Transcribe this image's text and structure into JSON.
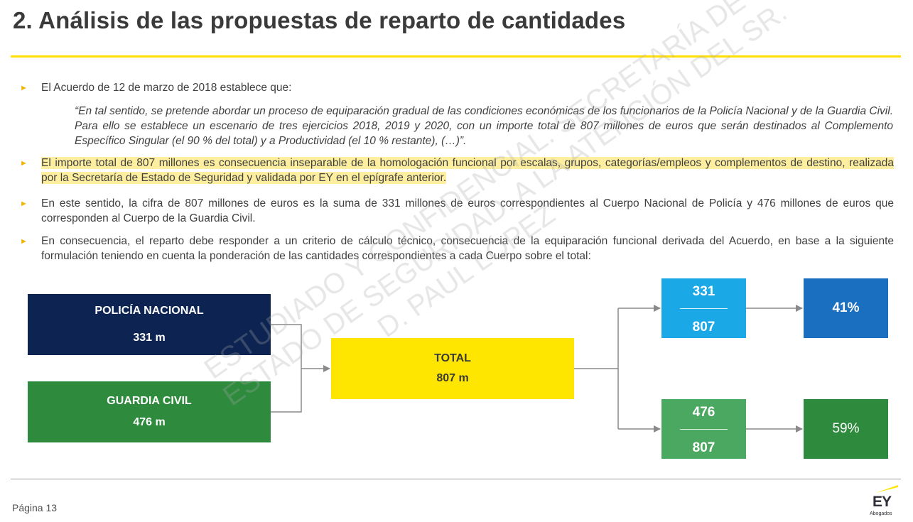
{
  "title": "2. Análisis de las propuestas de reparto de cantidades",
  "bullet_icon": "triangle-right-icon",
  "paragraphs": {
    "p1": "El Acuerdo de 12 de marzo de 2018 establece que:",
    "quote": "“En tal sentido, se pretende abordar un proceso de equiparación gradual de las condiciones económicas de los funcionarios de la Policía Nacional y de la Guardia Civil. Para ello se establece un escenario de tres ejercicios 2018, 2019 y 2020, con un importe total de 807 millones de euros que serán destinados al Complemento Específico Singular (el 90 % del total) y a Productividad (el 10 % restante), (…)”.",
    "p2": "El importe total de 807 millones es consecuencia inseparable de la homologación funcional por escalas, grupos, categorías/empleos y complementos de destino, realizada por la Secretaría de Estado de Seguridad y validada por EY en el epígrafe anterior.",
    "p3": "En este sentido, la cifra de 807 millones de euros es la suma de 331 millones de euros correspondientes al Cuerpo Nacional de Policía y 476 millones de euros que corresponden al Cuerpo de la Guardia Civil.",
    "p4": "En consecuencia, el reparto debe responder a un criterio de cálculo técnico, consecuencia de la equiparación funcional derivada del Acuerdo, en base a la siguiente formulación teniendo en cuenta la ponderación de las cantidades correspondientes a cada Cuerpo sobre el total:"
  },
  "diagram": {
    "policia": {
      "label": "POLICÍA NACIONAL",
      "value": "331 m"
    },
    "guardia": {
      "label": "GUARDIA CIVIL",
      "value": "476 m"
    },
    "total": {
      "label": "TOTAL",
      "value": "807 m"
    },
    "frac_policia": {
      "numerator": "331",
      "denominator": "807"
    },
    "frac_guardia": {
      "numerator": "476",
      "denominator": "807"
    },
    "pct_policia": "41%",
    "pct_guardia": "59%"
  },
  "watermark": {
    "line1": "ESTUDIADO Y CONFIDENCIAL. SECRETARÍA DE",
    "line2": "ESTADO DE SEGURIDAD. A LA ATENCIÓN DEL SR.",
    "line3": "D. PAUL LÓPEZ"
  },
  "footer": {
    "page": "Página 13",
    "logo_text": "EY",
    "logo_sub": "Abogados"
  },
  "colors": {
    "accent_yellow": "#ffe000",
    "policia_navy": "#0d2452",
    "guardia_green": "#2e8b3e",
    "total_yellow": "#ffe600",
    "frac_policia_blue": "#1aa8e6",
    "pct_policia_blue": "#1a6fc0",
    "frac_guardia_green": "#4aa860",
    "highlight": "#fdeea0"
  }
}
